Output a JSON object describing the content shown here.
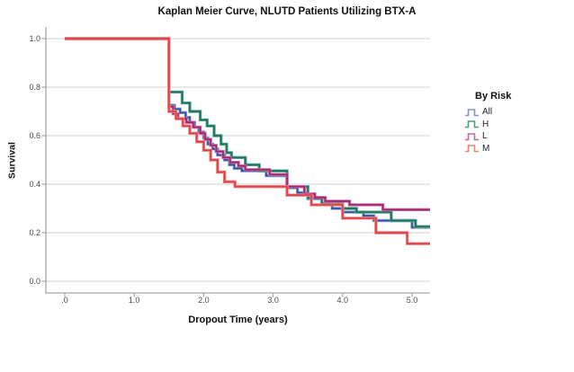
{
  "title": "Kaplan Meier Curve, NLUTD Patients Utilizing BTX-A",
  "x_axis": {
    "label": "Dropout Time (years)",
    "ticks": [
      ".0",
      "1.0",
      "2.0",
      "3.0",
      "4.0",
      "5.0"
    ]
  },
  "y_axis": {
    "label": "Survival",
    "ticks": [
      "0.0",
      "0.2",
      "0.4",
      "0.6",
      "0.8",
      "1.0"
    ]
  },
  "legend": {
    "title": "By Risk",
    "items": [
      {
        "label": "All",
        "color": "#7F96CC"
      },
      {
        "label": "H",
        "color": "#4E9A88"
      },
      {
        "label": "L",
        "color": "#C9639E"
      },
      {
        "label": "M",
        "color": "#F08078"
      }
    ]
  },
  "chart_data": {
    "type": "line",
    "subtype": "kaplan-meier-step",
    "title": "Kaplan Meier Curve, NLUTD Patients Utilizing BTX-A",
    "xlabel": "Dropout Time (years)",
    "ylabel": "Survival",
    "xlim": [
      0,
      5.3
    ],
    "ylim": [
      0,
      1.0
    ],
    "x_tick_values": [
      0,
      1,
      2,
      3,
      4,
      5
    ],
    "y_tick_values": [
      0,
      0.2,
      0.4,
      0.6,
      0.8,
      1.0
    ],
    "grid": "horizontal",
    "legend_position": "right",
    "end_time": 5.27,
    "series": [
      {
        "name": "All",
        "color": "#30509F",
        "halo": "#8CA2D8",
        "points": [
          [
            0,
            1.0
          ],
          [
            1.5,
            0.725
          ],
          [
            1.58,
            0.71
          ],
          [
            1.66,
            0.695
          ],
          [
            1.74,
            0.675
          ],
          [
            1.8,
            0.655
          ],
          [
            1.87,
            0.635
          ],
          [
            1.93,
            0.615
          ],
          [
            2.0,
            0.59
          ],
          [
            2.06,
            0.565
          ],
          [
            2.13,
            0.545
          ],
          [
            2.2,
            0.52
          ],
          [
            2.3,
            0.5
          ],
          [
            2.37,
            0.48
          ],
          [
            2.44,
            0.465
          ],
          [
            2.55,
            0.455
          ],
          [
            2.9,
            0.435
          ],
          [
            3.2,
            0.385
          ],
          [
            3.35,
            0.365
          ],
          [
            3.5,
            0.34
          ],
          [
            3.7,
            0.32
          ],
          [
            3.85,
            0.3
          ],
          [
            4.0,
            0.285
          ],
          [
            4.3,
            0.27
          ],
          [
            4.45,
            0.25
          ],
          [
            5.0,
            0.222
          ]
        ]
      },
      {
        "name": "H",
        "color": "#1A7260",
        "halo": "#63A493",
        "points": [
          [
            0,
            1.0
          ],
          [
            1.5,
            0.78
          ],
          [
            1.69,
            0.735
          ],
          [
            1.8,
            0.7
          ],
          [
            1.95,
            0.665
          ],
          [
            2.05,
            0.64
          ],
          [
            2.15,
            0.6
          ],
          [
            2.25,
            0.565
          ],
          [
            2.33,
            0.53
          ],
          [
            2.4,
            0.51
          ],
          [
            2.6,
            0.48
          ],
          [
            2.8,
            0.455
          ],
          [
            3.2,
            0.39
          ],
          [
            3.5,
            0.345
          ],
          [
            3.7,
            0.32
          ],
          [
            4.0,
            0.3
          ],
          [
            4.2,
            0.285
          ],
          [
            4.7,
            0.25
          ],
          [
            5.05,
            0.225
          ]
        ]
      },
      {
        "name": "L",
        "color": "#A2256A",
        "halo": "#CC6FA6",
        "points": [
          [
            0,
            1.0
          ],
          [
            1.5,
            0.72
          ],
          [
            1.56,
            0.69
          ],
          [
            1.63,
            0.67
          ],
          [
            1.75,
            0.655
          ],
          [
            1.85,
            0.635
          ],
          [
            1.95,
            0.61
          ],
          [
            2.02,
            0.585
          ],
          [
            2.1,
            0.56
          ],
          [
            2.18,
            0.535
          ],
          [
            2.28,
            0.51
          ],
          [
            2.38,
            0.49
          ],
          [
            2.5,
            0.475
          ],
          [
            2.6,
            0.46
          ],
          [
            2.95,
            0.44
          ],
          [
            3.2,
            0.39
          ],
          [
            3.45,
            0.36
          ],
          [
            3.6,
            0.345
          ],
          [
            3.75,
            0.33
          ],
          [
            4.1,
            0.315
          ],
          [
            4.58,
            0.295
          ]
        ]
      },
      {
        "name": "M",
        "color": "#D8414F",
        "halo": "#F4837B",
        "points": [
          [
            0,
            1.0
          ],
          [
            1.5,
            0.7
          ],
          [
            1.6,
            0.67
          ],
          [
            1.7,
            0.64
          ],
          [
            1.8,
            0.61
          ],
          [
            1.9,
            0.575
          ],
          [
            2.0,
            0.54
          ],
          [
            2.1,
            0.5
          ],
          [
            2.2,
            0.45
          ],
          [
            2.3,
            0.41
          ],
          [
            2.45,
            0.39
          ],
          [
            3.2,
            0.355
          ],
          [
            3.55,
            0.315
          ],
          [
            4.0,
            0.26
          ],
          [
            4.48,
            0.2
          ],
          [
            4.93,
            0.155
          ]
        ]
      }
    ]
  }
}
